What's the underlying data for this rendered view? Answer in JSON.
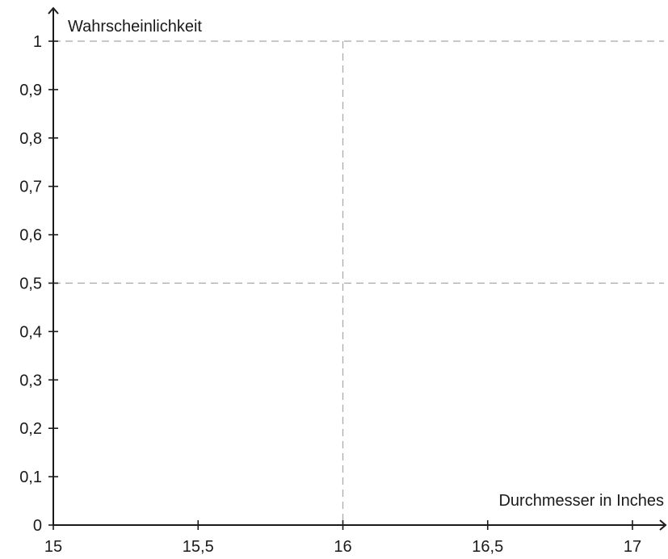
{
  "chart_data": {
    "type": "line",
    "title": "",
    "xlabel": "Durchmesser in Inches",
    "ylabel": "Wahrscheinlichkeit",
    "xlim": [
      15,
      17
    ],
    "ylim": [
      0,
      1
    ],
    "x_ticks": [
      15,
      15.5,
      16,
      16.5,
      17
    ],
    "x_tick_labels": [
      "15",
      "15,5",
      "16",
      "16,5",
      "17"
    ],
    "y_ticks": [
      0,
      0.1,
      0.2,
      0.3,
      0.4,
      0.5,
      0.6,
      0.7,
      0.8,
      0.9,
      1
    ],
    "y_tick_labels": [
      "0",
      "0,1",
      "0,2",
      "0,3",
      "0,4",
      "0,5",
      "0,6",
      "0,7",
      "0,8",
      "0,9",
      "1"
    ],
    "reference_lines": {
      "horizontal": [
        0.5,
        1
      ],
      "vertical": [
        16
      ]
    },
    "series": [],
    "grid": false,
    "colors": {
      "axis": "#1a1a1a",
      "reference": "#a6a6a6"
    }
  }
}
